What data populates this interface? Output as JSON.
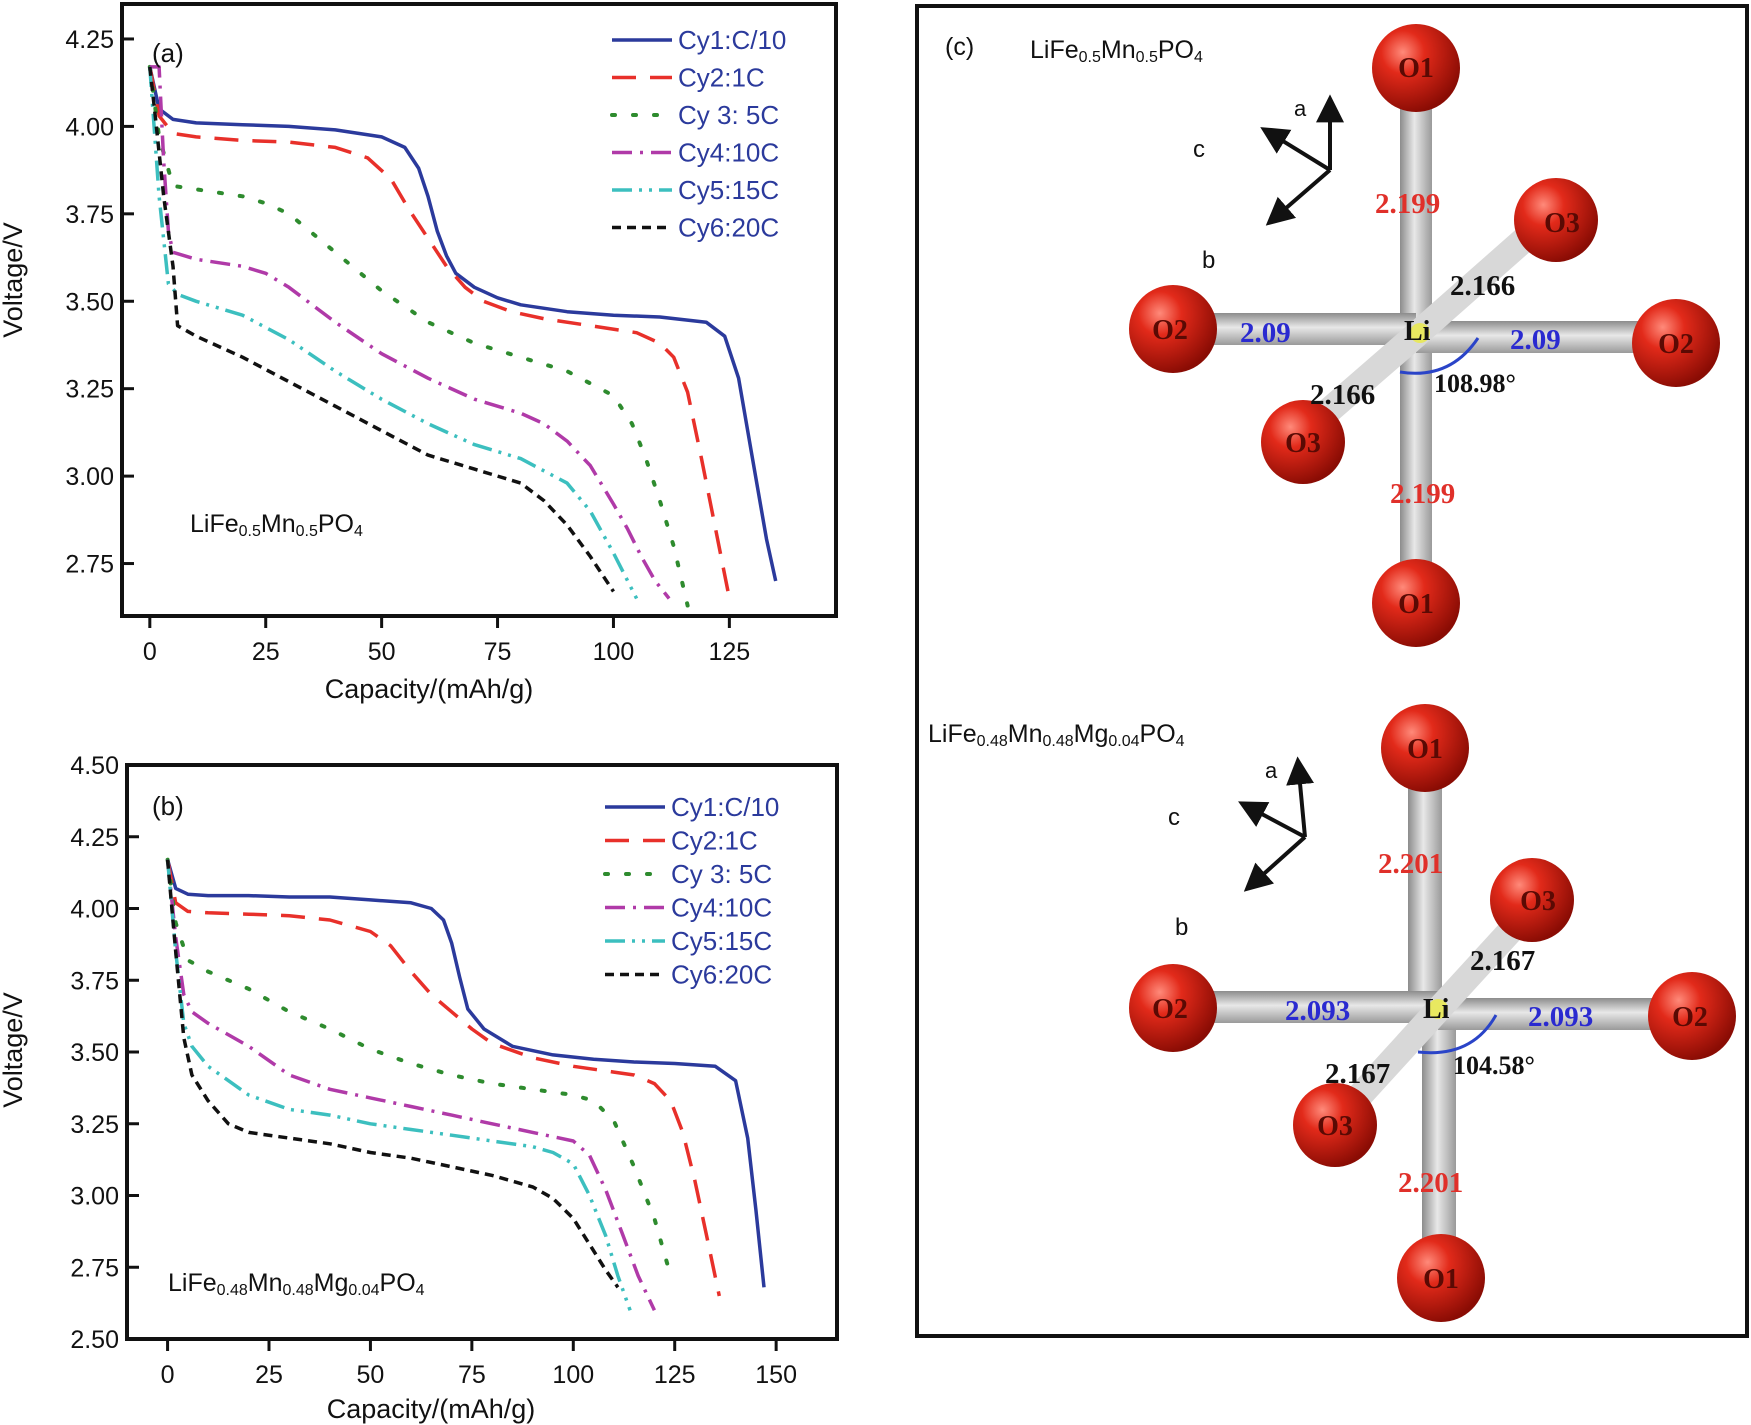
{
  "chart_data": [
    {
      "type": "line",
      "panel_label": "(a)",
      "compound": {
        "base": "LiFe",
        "s1": "0.5",
        "m1": "Mn",
        "s2": "0.5",
        "m2": "PO",
        "s3": "4"
      },
      "xlabel": "Capacity/(mAh/g)",
      "ylabel": "Voltage/V",
      "xlim": [
        -6,
        148
      ],
      "ylim": [
        2.6,
        4.35
      ],
      "xticks": [
        0,
        25,
        50,
        75,
        100,
        125
      ],
      "yticks": [
        2.75,
        3.0,
        3.25,
        3.5,
        3.75,
        4.0,
        4.25
      ],
      "ytick_labels": [
        "2.75",
        "3.00",
        "3.25",
        "3.50",
        "3.75",
        "4.00",
        "4.25"
      ],
      "legend": "top-right",
      "series": [
        {
          "name": "Cy1:C/10",
          "color": "#2b3a9c",
          "dash": "solid",
          "x": [
            0,
            2,
            5,
            10,
            20,
            30,
            40,
            50,
            55,
            58,
            60,
            62,
            64,
            66,
            70,
            75,
            80,
            90,
            100,
            110,
            120,
            124,
            127,
            130,
            133,
            135
          ],
          "y": [
            4.17,
            4.05,
            4.02,
            4.01,
            4.005,
            4.0,
            3.99,
            3.97,
            3.94,
            3.88,
            3.8,
            3.7,
            3.63,
            3.58,
            3.54,
            3.51,
            3.49,
            3.47,
            3.46,
            3.455,
            3.44,
            3.4,
            3.28,
            3.05,
            2.82,
            2.7
          ]
        },
        {
          "name": "Cy2:1C",
          "color": "#e8302a",
          "dash": "24,14",
          "x": [
            0,
            2,
            5,
            10,
            20,
            30,
            40,
            47,
            52,
            56,
            60,
            64,
            68,
            72,
            78,
            85,
            95,
            105,
            110,
            113,
            116,
            119,
            122,
            125
          ],
          "y": [
            4.17,
            4.03,
            3.98,
            3.97,
            3.96,
            3.955,
            3.94,
            3.91,
            3.85,
            3.76,
            3.68,
            3.6,
            3.54,
            3.5,
            3.47,
            3.45,
            3.43,
            3.41,
            3.38,
            3.34,
            3.24,
            3.05,
            2.85,
            2.65
          ]
        },
        {
          "name": "Cy 3: 5C",
          "color": "#2e8b2e",
          "dash": "3,18",
          "x": [
            0,
            2,
            5,
            10,
            20,
            25,
            30,
            40,
            50,
            60,
            70,
            80,
            90,
            100,
            104,
            107,
            110,
            113,
            116
          ],
          "y": [
            4.17,
            3.97,
            3.83,
            3.82,
            3.8,
            3.78,
            3.75,
            3.64,
            3.53,
            3.44,
            3.38,
            3.34,
            3.3,
            3.23,
            3.15,
            3.05,
            2.93,
            2.8,
            2.63
          ]
        },
        {
          "name": "Cy4:10C",
          "color": "#b03aa8",
          "dash": "20,8,3,8",
          "x": [
            0,
            1,
            2,
            3,
            4,
            5,
            10,
            20,
            25,
            30,
            40,
            50,
            60,
            70,
            80,
            85,
            90,
            95,
            100,
            103,
            106,
            109,
            112
          ],
          "y": [
            4.17,
            4.17,
            4.17,
            3.9,
            3.7,
            3.64,
            3.62,
            3.6,
            3.58,
            3.54,
            3.44,
            3.35,
            3.28,
            3.22,
            3.18,
            3.15,
            3.1,
            3.03,
            2.92,
            2.85,
            2.77,
            2.7,
            2.65
          ]
        },
        {
          "name": "Cy5:15C",
          "color": "#3cbfbf",
          "dash": "20,7,3,7,3,7",
          "x": [
            0,
            2,
            4,
            6,
            10,
            20,
            30,
            40,
            50,
            60,
            70,
            80,
            90,
            95,
            100,
            105
          ],
          "y": [
            4.17,
            3.8,
            3.55,
            3.52,
            3.5,
            3.46,
            3.39,
            3.3,
            3.22,
            3.15,
            3.09,
            3.05,
            2.98,
            2.9,
            2.78,
            2.65
          ]
        },
        {
          "name": "Cy6:20C",
          "color": "#111111",
          "dash": "9,6",
          "x": [
            0,
            1,
            3,
            5,
            6,
            10,
            20,
            30,
            40,
            50,
            60,
            70,
            80,
            85,
            90,
            95,
            100
          ],
          "y": [
            4.17,
            4.05,
            3.8,
            3.6,
            3.43,
            3.4,
            3.34,
            3.27,
            3.2,
            3.13,
            3.06,
            3.02,
            2.98,
            2.93,
            2.86,
            2.77,
            2.67
          ]
        }
      ]
    },
    {
      "type": "line",
      "panel_label": "(b)",
      "compound": {
        "base": "LiFe",
        "s1": "0.48",
        "m1": "Mn",
        "s2": "0.48",
        "m2": "Mg",
        "s3": "0.04",
        "m3": "PO",
        "s4": "4"
      },
      "xlabel": "Capacity/(mAh/g)",
      "ylabel": "Voltage/V",
      "xlim": [
        -10,
        165
      ],
      "ylim": [
        2.5,
        4.5
      ],
      "xticks": [
        0,
        25,
        50,
        75,
        100,
        125,
        150
      ],
      "yticks": [
        2.5,
        2.75,
        3.0,
        3.25,
        3.5,
        3.75,
        4.0,
        4.25,
        4.5
      ],
      "ytick_labels": [
        "2.50",
        "2.75",
        "3.00",
        "3.25",
        "3.50",
        "3.75",
        "4.00",
        "4.25",
        "4.50"
      ],
      "legend": "top-right",
      "series": [
        {
          "name": "Cy1:C/10",
          "color": "#2b3a9c",
          "dash": "solid",
          "x": [
            0,
            2,
            5,
            10,
            20,
            30,
            40,
            50,
            60,
            65,
            68,
            70,
            72,
            74,
            78,
            85,
            95,
            105,
            115,
            125,
            135,
            140,
            143,
            145,
            147
          ],
          "y": [
            4.17,
            4.07,
            4.05,
            4.045,
            4.045,
            4.04,
            4.04,
            4.03,
            4.02,
            4.0,
            3.96,
            3.88,
            3.76,
            3.65,
            3.58,
            3.52,
            3.49,
            3.475,
            3.465,
            3.46,
            3.45,
            3.4,
            3.2,
            2.95,
            2.68
          ]
        },
        {
          "name": "Cy2:1C",
          "color": "#e8302a",
          "dash": "24,14",
          "x": [
            0,
            2,
            5,
            10,
            20,
            30,
            40,
            50,
            55,
            60,
            65,
            70,
            75,
            80,
            90,
            100,
            110,
            115,
            120,
            124,
            127,
            130,
            133,
            136
          ],
          "y": [
            4.17,
            4.02,
            3.99,
            3.985,
            3.98,
            3.975,
            3.96,
            3.92,
            3.87,
            3.78,
            3.7,
            3.64,
            3.58,
            3.53,
            3.48,
            3.45,
            3.43,
            3.42,
            3.39,
            3.33,
            3.22,
            3.05,
            2.85,
            2.65
          ]
        },
        {
          "name": "Cy 3: 5C",
          "color": "#2e8b2e",
          "dash": "3,18",
          "x": [
            0,
            2,
            5,
            10,
            20,
            30,
            40,
            50,
            60,
            70,
            80,
            90,
            100,
            105,
            110,
            115,
            120,
            124
          ],
          "y": [
            4.17,
            3.95,
            3.82,
            3.78,
            3.72,
            3.64,
            3.58,
            3.51,
            3.46,
            3.42,
            3.39,
            3.37,
            3.35,
            3.33,
            3.26,
            3.1,
            2.92,
            2.72
          ]
        },
        {
          "name": "Cy4:10C",
          "color": "#b03aa8",
          "dash": "20,8,3,8",
          "x": [
            0,
            2,
            4,
            6,
            10,
            20,
            30,
            40,
            50,
            60,
            70,
            80,
            90,
            100,
            104,
            108,
            112,
            116,
            120
          ],
          "y": [
            4.17,
            3.9,
            3.7,
            3.64,
            3.6,
            3.52,
            3.42,
            3.37,
            3.34,
            3.31,
            3.28,
            3.25,
            3.22,
            3.19,
            3.14,
            3.02,
            2.87,
            2.72,
            2.6
          ]
        },
        {
          "name": "Cy5:15C",
          "color": "#3cbfbf",
          "dash": "20,7,3,7,3,7",
          "x": [
            0,
            2,
            4,
            6,
            10,
            20,
            30,
            40,
            50,
            60,
            70,
            80,
            90,
            95,
            100,
            104,
            108,
            111,
            114
          ],
          "y": [
            4.17,
            3.85,
            3.6,
            3.52,
            3.45,
            3.35,
            3.3,
            3.28,
            3.25,
            3.23,
            3.21,
            3.19,
            3.17,
            3.15,
            3.11,
            3.0,
            2.86,
            2.72,
            2.6
          ]
        },
        {
          "name": "Cy6:20C",
          "color": "#111111",
          "dash": "9,6",
          "x": [
            0,
            2,
            4,
            6,
            10,
            15,
            20,
            30,
            40,
            50,
            60,
            70,
            80,
            90,
            95,
            100,
            104,
            108,
            111
          ],
          "y": [
            4.17,
            3.85,
            3.55,
            3.42,
            3.33,
            3.25,
            3.22,
            3.2,
            3.18,
            3.15,
            3.13,
            3.1,
            3.07,
            3.03,
            2.99,
            2.92,
            2.83,
            2.74,
            2.68
          ]
        }
      ]
    }
  ],
  "panel_c": {
    "label": "(c)",
    "structures": [
      {
        "compound": {
          "base": "LiFe",
          "s1": "0.5",
          "m1": "Mn",
          "s2": "0.5",
          "m2": "PO",
          "s3": "4"
        },
        "axes": {
          "a": "a",
          "b": "b",
          "c": "c"
        },
        "atoms": {
          "center": "Li",
          "O1_top": "O1",
          "O1_bottom": "O1",
          "O2_left": "O2",
          "O2_right": "O2",
          "O3_upper": "O3",
          "O3_lower": "O3"
        },
        "bonds": {
          "O1_top": "2.199",
          "O1_bottom": "2.199",
          "O2_left": "2.09",
          "O2_right": "2.09",
          "O3_upper": "2.166",
          "O3_lower": "2.166"
        },
        "angle": "108.98°"
      },
      {
        "compound": {
          "base": "LiFe",
          "s1": "0.48",
          "m1": "Mn",
          "s2": "0.48",
          "m2": "Mg",
          "s3": "0.04",
          "m3": "PO",
          "s4": "4"
        },
        "axes": {
          "a": "a",
          "b": "b",
          "c": "c"
        },
        "atoms": {
          "center": "Li",
          "O1_top": "O1",
          "O1_bottom": "O1",
          "O2_left": "O2",
          "O2_right": "O2",
          "O3_upper": "O3",
          "O3_lower": "O3"
        },
        "bonds": {
          "O1_top": "2.201",
          "O1_bottom": "2.201",
          "O2_left": "2.093",
          "O2_right": "2.093",
          "O3_upper": "2.167",
          "O3_lower": "2.167"
        },
        "angle": "104.58°"
      }
    ],
    "colors": {
      "oxygen": "#d42415",
      "bond": "#c9c9c9",
      "bond_red_label": "#e0302a",
      "bond_blue_label": "#2a2ad0",
      "angle_arc": "#2a44c8",
      "li": "#e8e860"
    }
  }
}
